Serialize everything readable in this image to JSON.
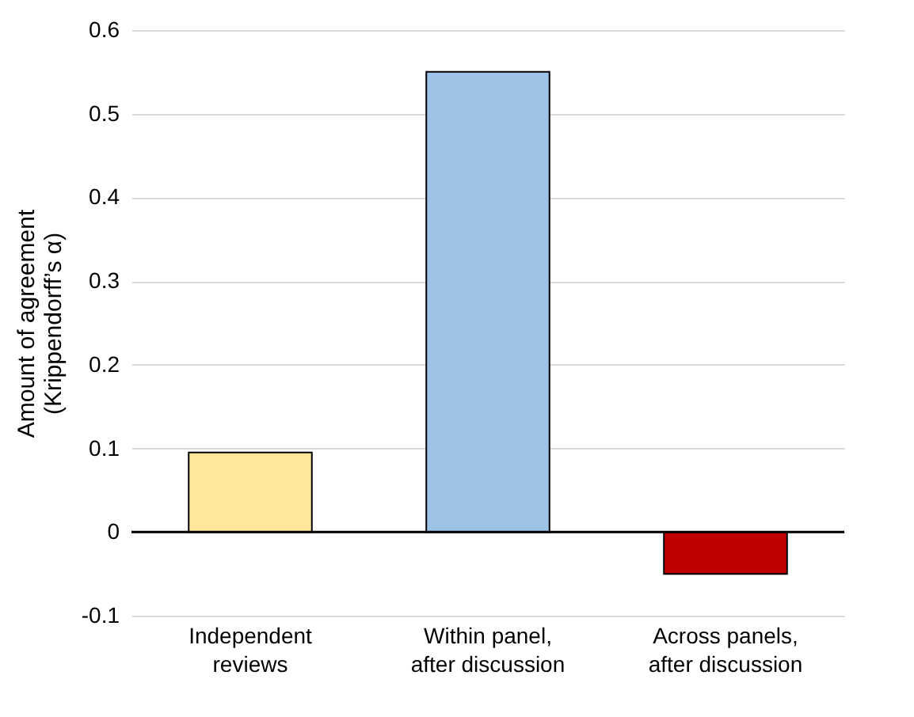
{
  "chart_data": {
    "type": "bar",
    "ylabel": "Amount of agreement\n(Krippendorff’s α)",
    "categories": [
      "Independent\nreviews",
      "Within panel,\nafter discussion",
      "Across panels,\nafter discussion"
    ],
    "values": [
      0.095,
      0.55,
      -0.05
    ],
    "colors": [
      "#ffe699",
      "#9dc3e6",
      "#c00000"
    ],
    "ylim": [
      -0.1,
      0.6
    ],
    "yticks": [
      -0.1,
      0,
      0.1,
      0.2,
      0.3,
      0.4,
      0.5,
      0.6
    ],
    "grid": "y",
    "ref_lines": [
      {
        "axis": "y",
        "value": 0,
        "color": "#000000"
      }
    ]
  }
}
